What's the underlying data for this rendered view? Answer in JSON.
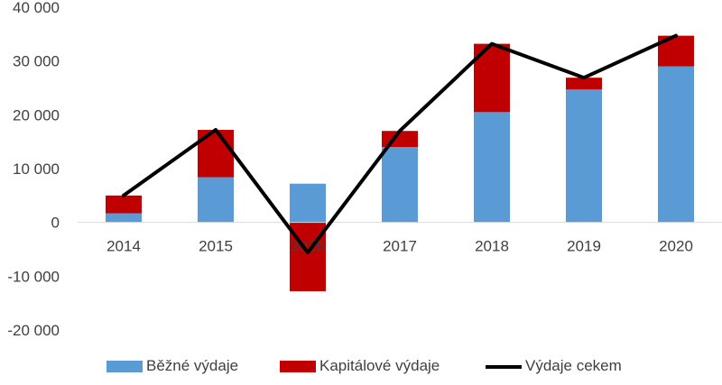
{
  "chart_data": {
    "type": "bar",
    "stacked": true,
    "categories": [
      "2014",
      "2015",
      "2016",
      "2017",
      "2018",
      "2019",
      "2020"
    ],
    "series": [
      {
        "name": "Běžné výdaje",
        "kind": "bar",
        "color": "#5B9BD5",
        "values": [
          1700,
          8400,
          7200,
          14000,
          20500,
          24700,
          29000
        ]
      },
      {
        "name": "Kapitálové výdaje",
        "kind": "bar",
        "color": "#C00000",
        "values": [
          3300,
          8800,
          -12800,
          3000,
          12700,
          2200,
          5700
        ]
      },
      {
        "name": "Výdaje cekem",
        "kind": "line",
        "color": "#000000",
        "values": [
          5000,
          17200,
          -5600,
          17000,
          33200,
          26900,
          34700
        ]
      }
    ],
    "y_ticks": [
      "40 000",
      "30 000",
      "20 000",
      "10 000",
      "0",
      "-10 000",
      "-20 000"
    ],
    "ylim": [
      -20000,
      40000
    ],
    "legend_position": "bottom",
    "grid": false
  }
}
